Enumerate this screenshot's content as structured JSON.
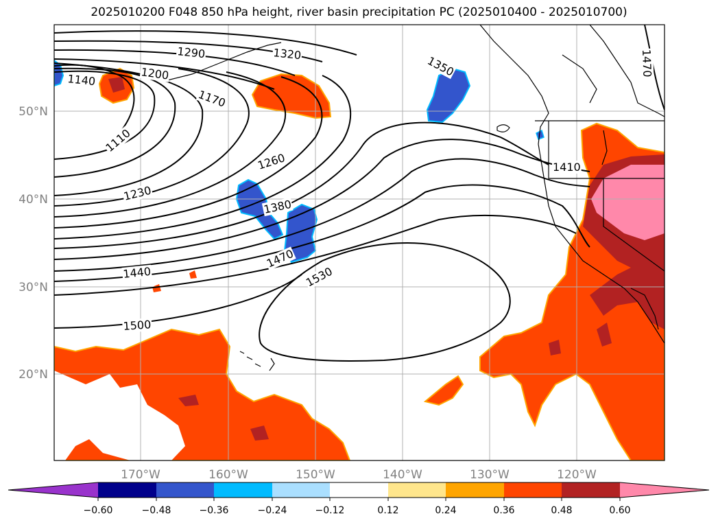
{
  "title": "2025010200 F048 850 hPa height, river basin precipitation PC (2025010400 - 2025010700)",
  "lon_ticks": [
    "170°W",
    "160°W",
    "150°W",
    "140°W",
    "130°W",
    "120°W"
  ],
  "lat_ticks": [
    "50°N",
    "40°N",
    "30°N",
    "20°N"
  ],
  "contour_labels": [
    "1290",
    "1320",
    "1350",
    "1470",
    "1140",
    "1200",
    "1170",
    "1110",
    "1260",
    "1230",
    "1380",
    "1410",
    "1470",
    "1440",
    "1530",
    "1500"
  ],
  "colorbar": {
    "ticks": [
      "−0.60",
      "−0.48",
      "−0.36",
      "−0.24",
      "−0.12",
      "0.12",
      "0.24",
      "0.36",
      "0.48",
      "0.60"
    ],
    "colors": [
      "#9933cc",
      "#00008b",
      "#3355cc",
      "#00bbff",
      "#aadfff",
      "#ffffff",
      "#ffe68c",
      "#ffa500",
      "#ff4500",
      "#b22222",
      "#ff88aa"
    ]
  }
}
